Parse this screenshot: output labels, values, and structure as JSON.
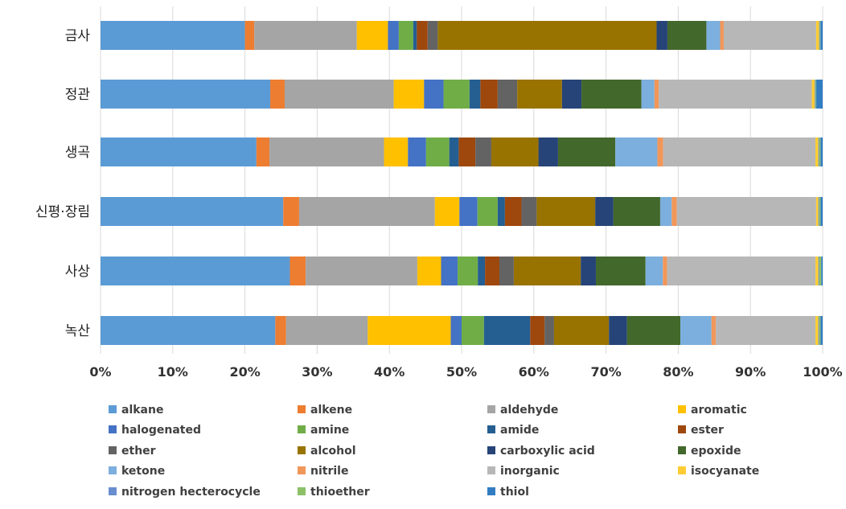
{
  "chart_data": {
    "type": "bar",
    "orientation": "horizontal",
    "stacked": true,
    "normalized": true,
    "title": "",
    "xlabel": "",
    "ylabel": "",
    "xlim": [
      0,
      100
    ],
    "x_ticks": [
      "0%",
      "10%",
      "20%",
      "30%",
      "40%",
      "50%",
      "60%",
      "70%",
      "80%",
      "90%",
      "100%"
    ],
    "grid": true,
    "legend_position": "bottom",
    "categories": [
      "금사",
      "정관",
      "생곡",
      "신평·장림",
      "사상",
      "녹산"
    ],
    "series": [
      {
        "name": "alkane",
        "color": "#5B9BD5",
        "values": [
          20.0,
          23.5,
          21.5,
          25.3,
          26.3,
          24.2
        ]
      },
      {
        "name": "alkene",
        "color": "#ED7D31",
        "values": [
          1.3,
          2.0,
          1.8,
          2.2,
          2.2,
          1.5
        ]
      },
      {
        "name": "aldehyde",
        "color": "#A5A5A5",
        "values": [
          14.2,
          15.1,
          15.8,
          18.8,
          15.5,
          11.3
        ]
      },
      {
        "name": "aromatic",
        "color": "#FFC000",
        "values": [
          4.3,
          4.2,
          3.3,
          3.4,
          3.3,
          11.5
        ]
      },
      {
        "name": "halogenated",
        "color": "#4472C4",
        "values": [
          1.5,
          2.7,
          2.5,
          2.5,
          2.3,
          1.5
        ]
      },
      {
        "name": "amine",
        "color": "#70AD47",
        "values": [
          2.0,
          3.6,
          3.2,
          2.8,
          2.8,
          3.1
        ]
      },
      {
        "name": "amide",
        "color": "#255E91",
        "values": [
          0.5,
          1.5,
          1.3,
          1.0,
          1.0,
          6.4
        ]
      },
      {
        "name": "ester",
        "color": "#9E480E",
        "values": [
          1.5,
          2.4,
          2.3,
          2.3,
          2.0,
          2.0
        ]
      },
      {
        "name": "ether",
        "color": "#636363",
        "values": [
          1.4,
          2.7,
          2.2,
          2.1,
          2.0,
          1.3
        ]
      },
      {
        "name": "alcohol",
        "color": "#997300",
        "values": [
          30.3,
          6.2,
          6.5,
          8.1,
          9.3,
          7.6
        ]
      },
      {
        "name": "carboxylic acid",
        "color": "#264478",
        "values": [
          1.5,
          2.7,
          2.7,
          2.5,
          2.1,
          2.5
        ]
      },
      {
        "name": "epoxide",
        "color": "#43682B",
        "values": [
          5.4,
          8.3,
          7.9,
          6.5,
          6.9,
          7.4
        ]
      },
      {
        "name": "ketone",
        "color": "#7CAFDD",
        "values": [
          1.9,
          1.8,
          5.8,
          1.6,
          2.4,
          4.3
        ]
      },
      {
        "name": "nitrile",
        "color": "#F1975A",
        "values": [
          0.5,
          0.6,
          0.8,
          0.7,
          0.6,
          0.6
        ]
      },
      {
        "name": "inorganic",
        "color": "#B7B7B7",
        "values": [
          12.8,
          21.2,
          21.0,
          19.3,
          20.6,
          13.8
        ]
      },
      {
        "name": "isocyanate",
        "color": "#FFCD33",
        "values": [
          0.4,
          0.4,
          0.4,
          0.3,
          0.4,
          0.4
        ]
      },
      {
        "name": "nitrogen hecterocycle",
        "color": "#698ED0",
        "values": [
          0.1,
          0.1,
          0.1,
          0.1,
          0.1,
          0.1
        ]
      },
      {
        "name": "thioether",
        "color": "#8CC168",
        "values": [
          0.1,
          0.1,
          0.2,
          0.2,
          0.3,
          0.2
        ]
      },
      {
        "name": "thiol",
        "color": "#327DC2",
        "values": [
          0.3,
          0.9,
          0.3,
          0.3,
          0.2,
          0.3
        ]
      }
    ]
  }
}
